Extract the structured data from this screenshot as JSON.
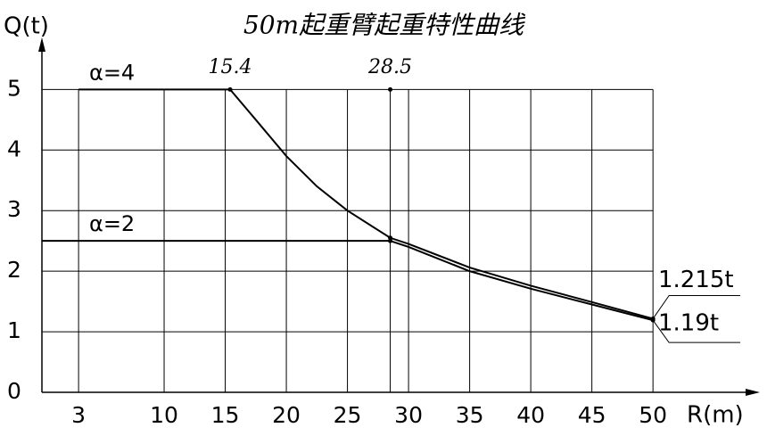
{
  "chart_data": {
    "type": "line",
    "title": "50m起重臂起重特性曲线",
    "x_label": "R(m)",
    "y_label": "Q(t)",
    "xlim": [
      0,
      58.6
    ],
    "ylim": [
      0,
      5.8
    ],
    "xticks": [
      3,
      10,
      15,
      20,
      25,
      30,
      35,
      40,
      45,
      50
    ],
    "yticks": [
      0,
      1,
      2,
      3,
      4,
      5
    ],
    "grid": true,
    "color": "#000000",
    "x_markers": [
      15.4,
      28.5
    ],
    "series": [
      {
        "name": "α=4",
        "color": "#000000",
        "end_label": "1.215t",
        "x": [
          3,
          15.4,
          17.5,
          20,
          22.5,
          25,
          28.5,
          30,
          35,
          40,
          45,
          50
        ],
        "values": [
          5,
          5,
          4.5,
          3.9,
          3.4,
          3.0,
          2.55,
          2.45,
          2.06,
          1.76,
          1.49,
          1.215
        ]
      },
      {
        "name": "α=2",
        "color": "#000000",
        "end_label": "1.19t",
        "x": [
          0,
          28.5,
          30,
          35,
          40,
          45,
          50
        ],
        "values": [
          2.5,
          2.5,
          2.4,
          2.0,
          1.71,
          1.45,
          1.19
        ]
      }
    ]
  }
}
